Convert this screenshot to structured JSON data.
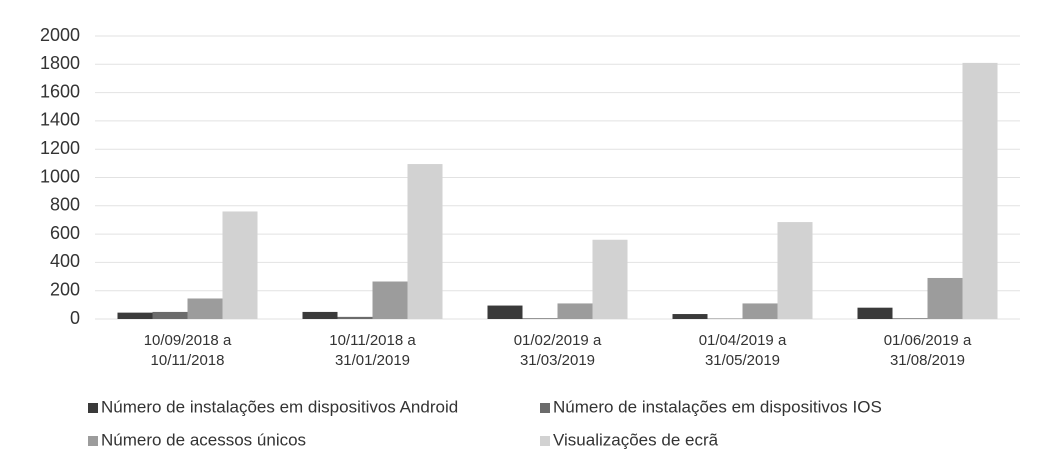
{
  "chart_data": {
    "type": "bar",
    "categories": [
      "10/09/2018 a\n10/11/2018",
      "10/11/2018 a\n31/01/2019",
      "01/02/2019 a\n31/03/2019",
      "01/04/2019 a\n31/05/2019",
      "01/06/2019 a\n31/08/2019"
    ],
    "series": [
      {
        "name": "Número de instalações em dispositivos Android",
        "color": "#3a3a3a",
        "values": [
          45,
          50,
          95,
          35,
          80
        ]
      },
      {
        "name": "Número de instalações em dispositivos IOS",
        "color": "#6b6b6b",
        "values": [
          50,
          15,
          5,
          3,
          5
        ]
      },
      {
        "name": "Número de acessos únicos",
        "color": "#9c9c9c",
        "values": [
          145,
          265,
          110,
          110,
          290
        ]
      },
      {
        "name": "Visualizações de ecrã",
        "color": "#d2d2d2",
        "values": [
          760,
          1095,
          560,
          685,
          1810
        ]
      }
    ],
    "ylim": [
      0,
      2000
    ],
    "yticks": [
      0,
      200,
      400,
      600,
      800,
      1000,
      1200,
      1400,
      1600,
      1800,
      2000
    ],
    "grid": true,
    "legend": "bottom"
  }
}
